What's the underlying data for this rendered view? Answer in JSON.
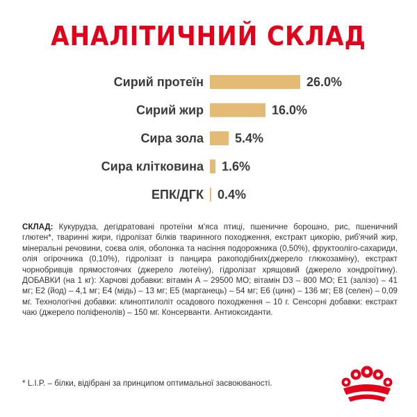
{
  "title": "АНАЛІТИЧНИЙ СКЛАД",
  "colors": {
    "accent": "#e2001a",
    "bar": "#e4bb75",
    "text": "#333333"
  },
  "chart_data": {
    "type": "bar",
    "orientation": "horizontal",
    "categories": [
      "Сирий протеїн",
      "Сирий жир",
      "Сира зола",
      "Сира клітковина",
      "ЕПК/ДГК"
    ],
    "values": [
      26.0,
      16.0,
      5.4,
      1.6,
      0.4
    ],
    "value_labels": [
      "26.0%",
      "16.0%",
      "5.4%",
      "1.6%",
      "0.4%"
    ],
    "unit": "%",
    "title": "АНАЛІТИЧНИЙ СКЛАД",
    "xlabel": "",
    "ylabel": "",
    "xlim": [
      0,
      26
    ],
    "grid": false,
    "legend": "none"
  },
  "composition": {
    "label": "СКЛАД:",
    "text": " Кукурудза, дегідратовані протеїни м'яса птиці, пшеничне борошно, рис, пшеничний глютен*, тваринні жири, гідролізат білків тваринного походження, екстракт цикорію, риб'ячий жир, мінеральні речовини, соєва олія, оболонка та насіння подорожника (0,50%), фруктоолігo-сахариди, олія огірочника (0,10%), гідролізат із панцира ракоподібних(джерело глюкозаміну), екстракт чорнобривців прямостоячих (джерело лютеїну), гідролізат хрящовий (джерело хондроїтину). ДОБАВКИ (на 1 кг): Харчові добавки: вітамін А – 29500 МО; вітамін D3 – 800 МО; Е1 (залізо) – 41 мг; Е2 (йод) – 4,1 мг; Е4 (мідь) – 13 мг; Е5 (марганець) – 54 мг; Е6 (цинк) – 136 мг; Е8 (селен) – 0,09 мг. Технологічні добавки: клиноптилоліт осадового походження – 10 г. Сенсорні добавки: екстракт чаю (джерело поліфенолів) – 150 мг. Консерванти. Антиоксиданти."
  },
  "footnote": "* L.I.P. – білки, відібрані за принципом оптимальної засвоюваності.",
  "logo": {
    "icon": "royal-canin-crown-icon"
  }
}
